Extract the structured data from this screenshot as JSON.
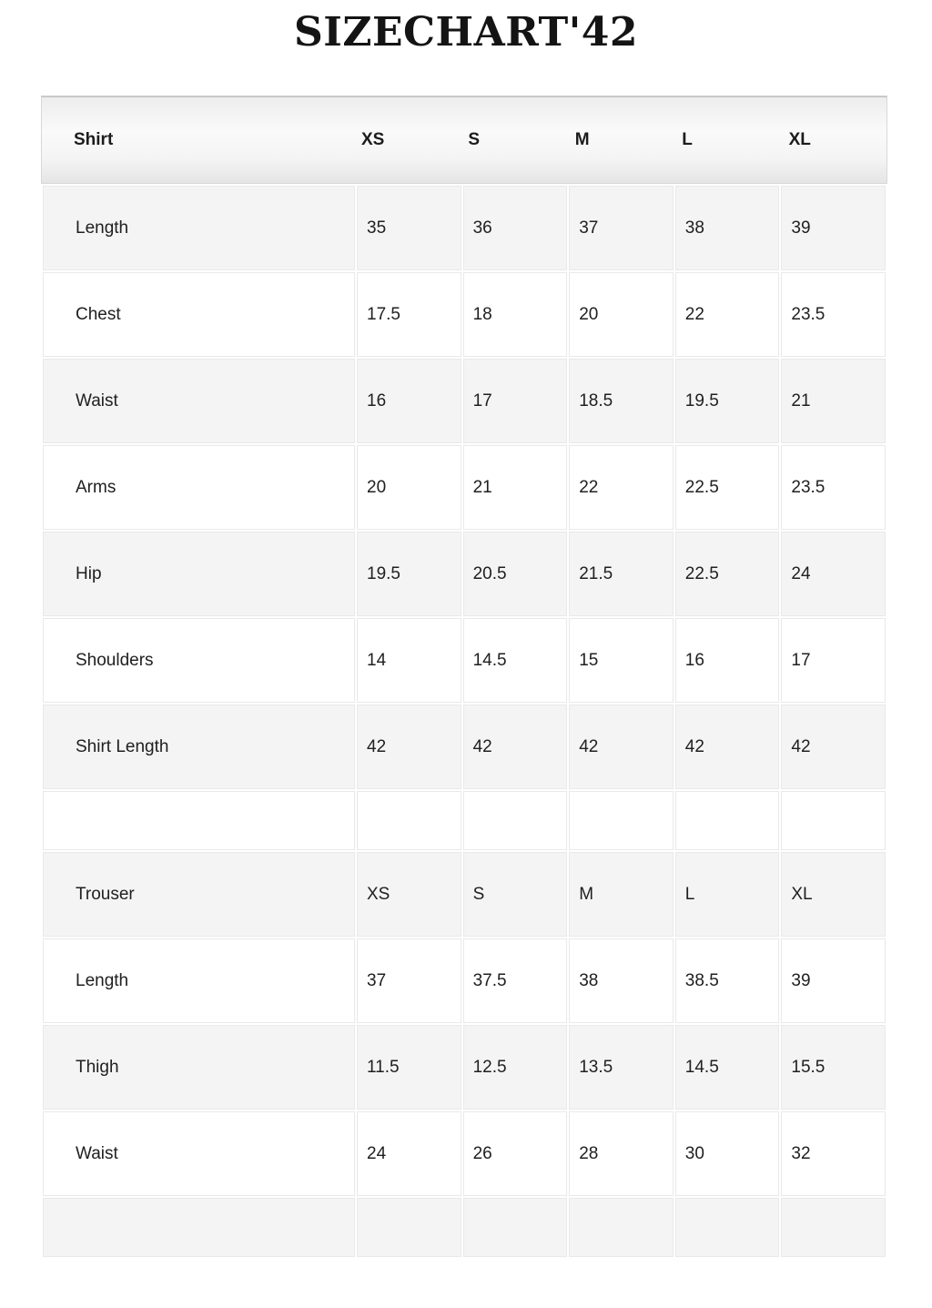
{
  "title": "SIZECHART'42",
  "colors": {
    "page_background": "#ffffff",
    "row_stripe": "#f4f4f4",
    "row_plain": "#ffffff",
    "cell_border": "#e9e9e9",
    "header_gradient_top": "#ededed",
    "header_gradient_bottom": "#e5e5e5",
    "header_border": "#c9c9c9",
    "text": "#202020"
  },
  "table": {
    "header": [
      "Shirt",
      "XS",
      "S",
      "M",
      "L",
      "XL"
    ],
    "rows": [
      {
        "cells": [
          "Length",
          "35",
          "36",
          "37",
          "38",
          "39"
        ]
      },
      {
        "cells": [
          "Chest",
          "17.5",
          "18",
          "20",
          "22",
          "23.5"
        ]
      },
      {
        "cells": [
          "Waist",
          "16",
          "17",
          "18.5",
          "19.5",
          "21"
        ]
      },
      {
        "cells": [
          "Arms",
          "20",
          "21",
          "22",
          "22.5",
          "23.5"
        ]
      },
      {
        "cells": [
          "Hip",
          "19.5",
          "20.5",
          "21.5",
          "22.5",
          "24"
        ]
      },
      {
        "cells": [
          "Shoulders",
          "14",
          "14.5",
          "15",
          "16",
          "17"
        ]
      },
      {
        "cells": [
          "Shirt Length",
          "42",
          "42",
          "42",
          "42",
          "42"
        ]
      },
      {
        "cells": [
          "",
          "",
          "",
          "",
          "",
          ""
        ]
      },
      {
        "cells": [
          "Trouser",
          "XS",
          "S",
          "M",
          "L",
          "XL"
        ]
      },
      {
        "cells": [
          "Length",
          "37",
          "37.5",
          "38",
          "38.5",
          "39"
        ]
      },
      {
        "cells": [
          "Thigh",
          "11.5",
          "12.5",
          "13.5",
          "14.5",
          "15.5"
        ]
      },
      {
        "cells": [
          "Waist",
          "24",
          "26",
          "28",
          "30",
          "32"
        ]
      },
      {
        "cells": [
          "",
          "",
          "",
          "",
          "",
          ""
        ]
      }
    ]
  },
  "chart_data": {
    "type": "table",
    "title": "SIZECHART'42",
    "sections": [
      {
        "name": "Shirt",
        "sizes": [
          "XS",
          "S",
          "M",
          "L",
          "XL"
        ],
        "measurements": {
          "Length": [
            35,
            36,
            37,
            38,
            39
          ],
          "Chest": [
            17.5,
            18,
            20,
            22,
            23.5
          ],
          "Waist": [
            16,
            17,
            18.5,
            19.5,
            21
          ],
          "Arms": [
            20,
            21,
            22,
            22.5,
            23.5
          ],
          "Hip": [
            19.5,
            20.5,
            21.5,
            22.5,
            24
          ],
          "Shoulders": [
            14,
            14.5,
            15,
            16,
            17
          ],
          "Shirt Length": [
            42,
            42,
            42,
            42,
            42
          ]
        }
      },
      {
        "name": "Trouser",
        "sizes": [
          "XS",
          "S",
          "M",
          "L",
          "XL"
        ],
        "measurements": {
          "Length": [
            37,
            37.5,
            38,
            38.5,
            39
          ],
          "Thigh": [
            11.5,
            12.5,
            13.5,
            14.5,
            15.5
          ],
          "Waist": [
            24,
            26,
            28,
            30,
            32
          ]
        }
      }
    ]
  }
}
